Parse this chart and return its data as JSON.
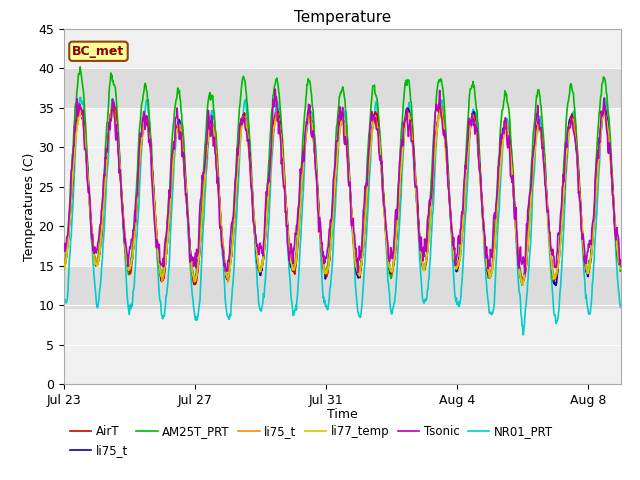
{
  "title": "Temperature",
  "xlabel": "Time",
  "ylabel": "Temperatures (C)",
  "ylim": [
    0,
    45
  ],
  "yticks": [
    0,
    5,
    10,
    15,
    20,
    25,
    30,
    35,
    40,
    45
  ],
  "annotation_text": "BC_met",
  "annotation_bg": "#FFFF99",
  "annotation_border": "#8B4513",
  "bg_band1": [
    9.5,
    15.0
  ],
  "bg_band2": [
    35.0,
    40.0
  ],
  "bg_color": "#DCDCDC",
  "plot_bg": "#F0F0F0",
  "series": [
    {
      "label": "AirT",
      "color": "#CC0000",
      "lw": 1.2,
      "zorder": 5
    },
    {
      "label": "li75_t",
      "color": "#0000CC",
      "lw": 1.2,
      "zorder": 4
    },
    {
      "label": "AM25T_PRT",
      "color": "#00BB00",
      "lw": 1.2,
      "zorder": 3
    },
    {
      "label": "li75_t",
      "color": "#FF8800",
      "lw": 1.2,
      "zorder": 5
    },
    {
      "label": "li77_temp",
      "color": "#CCCC00",
      "lw": 1.2,
      "zorder": 5
    },
    {
      "label": "Tsonic",
      "color": "#BB00BB",
      "lw": 1.2,
      "zorder": 6
    },
    {
      "label": "NR01_PRT",
      "color": "#00CCCC",
      "lw": 1.2,
      "zorder": 2
    }
  ],
  "n_points": 1000,
  "duration_days": 17.0,
  "tick_positions": [
    0,
    4,
    8,
    12,
    16
  ],
  "tick_labels": [
    "Jul 23",
    "Jul 27",
    "Jul 31",
    "Aug 4",
    "Aug 8"
  ],
  "figsize": [
    6.4,
    4.8
  ],
  "dpi": 100
}
